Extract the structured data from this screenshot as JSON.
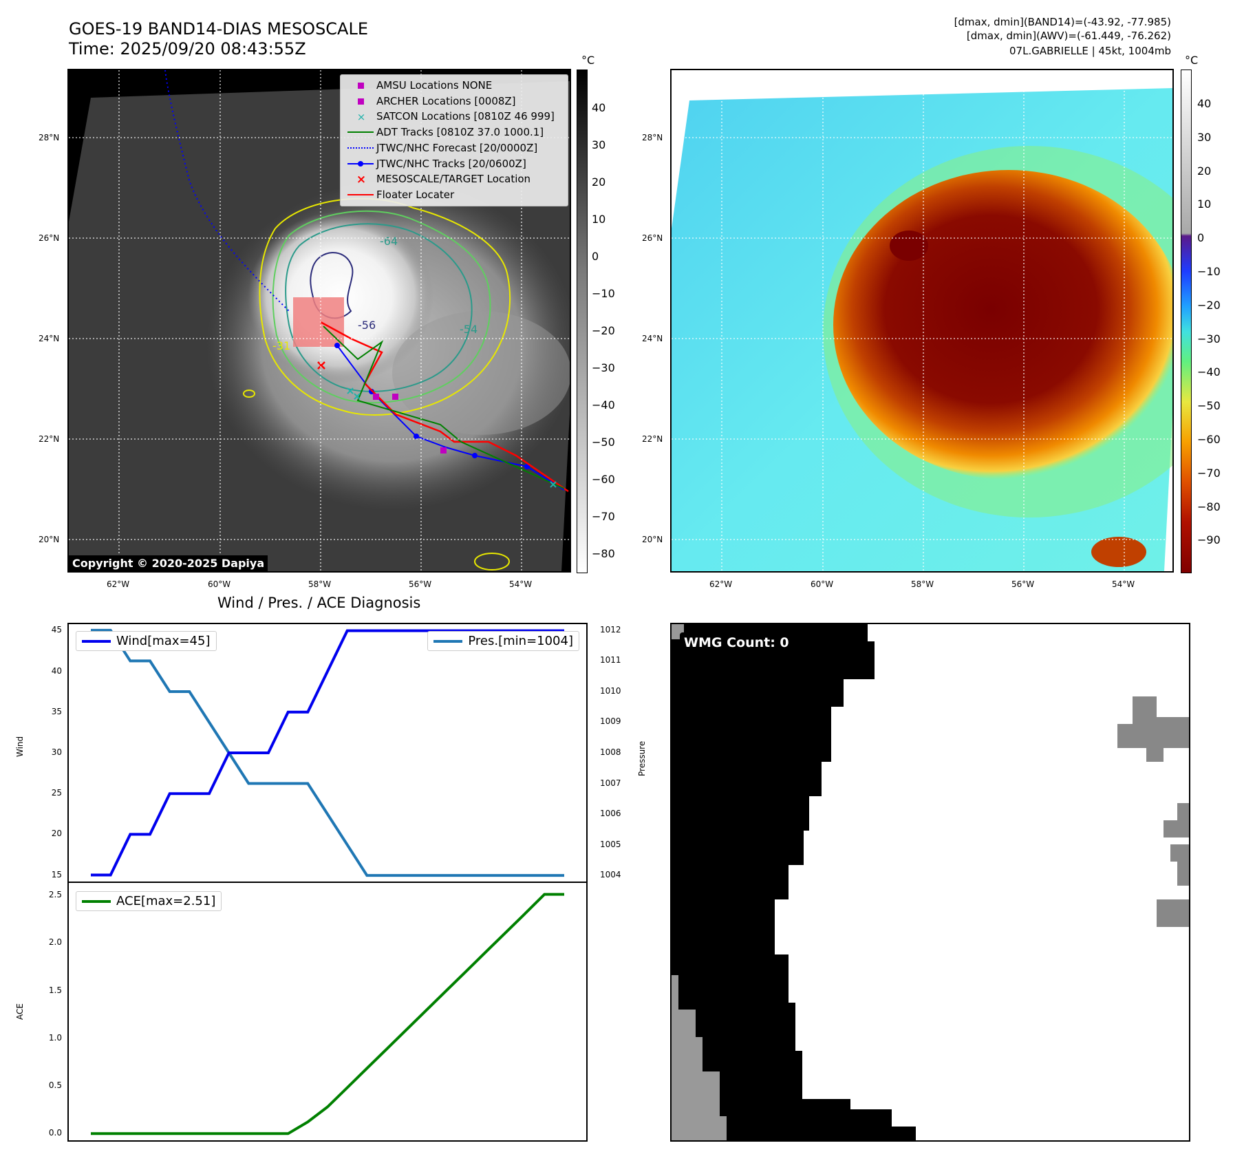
{
  "header": {
    "title_line1": "GOES-19 BAND14-DIAS MESOSCALE",
    "title_line2": "Time: 2025/09/20 08:43:55Z",
    "info_line1": "[dmax, dmin](BAND14)=(-43.92, -77.985)",
    "info_line2": "[dmax, dmin](AWV)=(-61.449, -76.262)",
    "info_line3": "07L.GABRIELLE | 45kt, 1004mb"
  },
  "map": {
    "lat_labels": [
      "28°N",
      "26°N",
      "24°N",
      "22°N",
      "20°N"
    ],
    "lon_labels": [
      "62°W",
      "60°W",
      "58°W",
      "56°W",
      "54°W"
    ],
    "copyright": "Copyright © 2020-2025 Dapiya",
    "contour_labels": [
      "-64",
      "-54",
      "-56",
      "-31"
    ],
    "legend": [
      {
        "label": "AMSU Locations NONE",
        "color": "#c000c0",
        "symbol": "square"
      },
      {
        "label": "ARCHER Locations [0008Z]",
        "color": "#c000c0",
        "symbol": "square"
      },
      {
        "label": "SATCON Locations [0810Z 46 999]",
        "color": "#20b2aa",
        "symbol": "x"
      },
      {
        "label": "ADT Tracks [0810Z 37.0 1000.1]",
        "color": "#008000",
        "symbol": "line"
      },
      {
        "label": "JTWC/NHC Forecast [20/0000Z]",
        "color": "#0000ff",
        "symbol": "dotted"
      },
      {
        "label": "JTWC/NHC Tracks [20/0600Z]",
        "color": "#0000ff",
        "symbol": "line-dot"
      },
      {
        "label": "MESOSCALE/TARGET Location",
        "color": "#ff0000",
        "symbol": "x"
      },
      {
        "label": "Floater Locater",
        "color": "#ff0000",
        "symbol": "line"
      }
    ]
  },
  "colorbar_gray": {
    "unit": "°C",
    "ticks": [
      "40",
      "30",
      "20",
      "10",
      "0",
      "−10",
      "−20",
      "−30",
      "−40",
      "−50",
      "−60",
      "−70",
      "−80"
    ]
  },
  "colorbar_color": {
    "unit": "°C",
    "ticks": [
      "40",
      "30",
      "20",
      "10",
      "0",
      "−10",
      "−20",
      "−30",
      "−40",
      "−50",
      "−60",
      "−70",
      "−80",
      "−90"
    ]
  },
  "chart_data": [
    {
      "type": "line",
      "title": "Wind / Pres. / ACE Diagnosis",
      "ylabel": "Wind",
      "ylabel_right": "Pressure",
      "ylim": [
        14.2,
        45.8
      ],
      "ylim_right": [
        1003.8,
        1012.2
      ],
      "y_ticks": [
        15,
        20,
        25,
        30,
        35,
        40,
        45
      ],
      "y_ticks_right": [
        1004,
        1005,
        1006,
        1007,
        1008,
        1009,
        1010,
        1011,
        1012
      ],
      "series": [
        {
          "name": "Wind[max=45]",
          "color": "#0000ee",
          "values": [
            15,
            15,
            20,
            20,
            25,
            25,
            25,
            30,
            30,
            30,
            35,
            35,
            40,
            45,
            45,
            45,
            45,
            45,
            45,
            45,
            45,
            45,
            45,
            45,
            45
          ]
        },
        {
          "name": "Pres.[min=1004]",
          "color": "#1f77b4",
          "values": [
            1012,
            1012,
            1011,
            1011,
            1010,
            1010,
            1009,
            1008,
            1007,
            1007,
            1007,
            1007,
            1006,
            1005,
            1004,
            1004,
            1004,
            1004,
            1004,
            1004,
            1004,
            1004,
            1004,
            1004,
            1004
          ]
        }
      ]
    },
    {
      "type": "line",
      "ylabel": "ACE",
      "ylim": [
        -0.07,
        2.63
      ],
      "y_ticks": [
        "0.0",
        "0.5",
        "1.0",
        "1.5",
        "2.0",
        "2.5"
      ],
      "series": [
        {
          "name": "ACE[max=2.51]",
          "color": "#008000",
          "values": [
            0,
            0,
            0,
            0,
            0,
            0,
            0,
            0,
            0,
            0,
            0,
            0.1225,
            0.28,
            0.4825,
            0.685,
            0.8875,
            1.09,
            1.2925,
            1.495,
            1.6975,
            1.9,
            2.1025,
            2.305,
            2.51,
            2.51
          ]
        }
      ]
    }
  ],
  "wmg_panel": {
    "label": "WMG Count: 0"
  }
}
